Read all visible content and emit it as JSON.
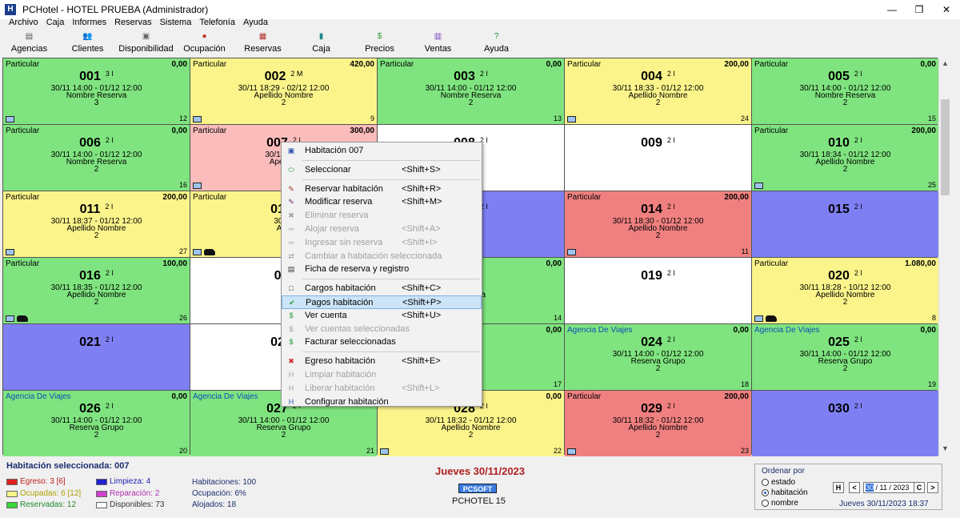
{
  "window": {
    "title": "PCHotel - HOTEL PRUEBA (Administrador)",
    "minimize": "—",
    "restore": "❐",
    "close": "✕"
  },
  "menu": [
    "Archivo",
    "Caja",
    "Informes",
    "Reservas",
    "Sistema",
    "Telefonía",
    "Ayuda"
  ],
  "toolbar": [
    {
      "label": "Agencias",
      "icon": "agencies-icon",
      "glyph": "▤",
      "color": "#555555"
    },
    {
      "label": "Clientes",
      "icon": "clients-icon",
      "glyph": "👥",
      "color": "#333333"
    },
    {
      "label": "Disponibilidad",
      "icon": "availability-icon",
      "glyph": "▣",
      "color": "#666666"
    },
    {
      "label": "Ocupación",
      "icon": "occupancy-icon",
      "glyph": "●",
      "color": "#c0302a"
    },
    {
      "label": "Reservas",
      "icon": "reservations-icon",
      "glyph": "▦",
      "color": "#b0302a"
    },
    {
      "label": "Caja",
      "icon": "cash-register-icon",
      "glyph": "▮",
      "color": "#1f8a8a"
    },
    {
      "label": "Precios",
      "icon": "prices-icon",
      "glyph": "$",
      "color": "#2e9a3a"
    },
    {
      "label": "Ventas",
      "icon": "sales-chart-icon",
      "glyph": "▥",
      "color": "#7a3ec0"
    },
    {
      "label": "Ayuda",
      "icon": "help-icon",
      "glyph": "?",
      "color": "#1e8a2e"
    }
  ],
  "rooms": [
    {
      "num": "001",
      "beds": "3 I",
      "type": "Particular",
      "amount": "0,00",
      "dates": "30/11 14:00 - 01/12 12:00",
      "name": "Nombre Reserva",
      "count": "3",
      "bnum": "12",
      "color": "green",
      "icons": [
        "bed"
      ]
    },
    {
      "num": "002",
      "beds": "2 M",
      "type": "Particular",
      "amount": "420,00",
      "dates": "30/11 18:29 - 02/12 12:00",
      "name": "Apellido Nombre",
      "count": "2",
      "bnum": "9",
      "color": "yellow",
      "icons": [
        "bed"
      ]
    },
    {
      "num": "003",
      "beds": "2 I",
      "type": "Particular",
      "amount": "0,00",
      "dates": "30/11 14:00 - 01/12 12:00",
      "name": "Nombre Reserva",
      "count": "2",
      "bnum": "13",
      "color": "green",
      "icons": []
    },
    {
      "num": "004",
      "beds": "2 I",
      "type": "Particular",
      "amount": "200,00",
      "dates": "30/11 18:33 - 01/12 12:00",
      "name": "Apellido Nombre",
      "count": "2",
      "bnum": "24",
      "color": "yellow",
      "icons": [
        "bed"
      ]
    },
    {
      "num": "005",
      "beds": "2 I",
      "type": "Particular",
      "amount": "0,00",
      "dates": "30/11 14:00 - 01/12 12:00",
      "name": "Nombre Reserva",
      "count": "2",
      "bnum": "15",
      "color": "green",
      "icons": []
    },
    {
      "num": "006",
      "beds": "2 I",
      "type": "Particular",
      "amount": "0,00",
      "dates": "30/11 14:00 - 01/12 12:00",
      "name": "Nombre Reserva",
      "count": "2",
      "bnum": "16",
      "color": "green",
      "icons": []
    },
    {
      "num": "007",
      "beds": "2 I",
      "type": "Particular",
      "amount": "300,00",
      "dates": "30/11 18:3",
      "name": "Apellido",
      "count": "",
      "bnum": "",
      "color": "pink",
      "icons": [
        "bed"
      ]
    },
    {
      "num": "008",
      "beds": "2 I",
      "type": "",
      "amount": "",
      "dates": "",
      "name": "",
      "count": "",
      "bnum": "",
      "color": "white",
      "icons": []
    },
    {
      "num": "009",
      "beds": "2 I",
      "type": "",
      "amount": "",
      "dates": "",
      "name": "",
      "count": "",
      "bnum": "",
      "color": "white",
      "icons": []
    },
    {
      "num": "010",
      "beds": "2 I",
      "type": "Particular",
      "amount": "200,00",
      "dates": "30/11 18:34 - 01/12 12:00",
      "name": "Apellido Nombre",
      "count": "2",
      "bnum": "25",
      "color": "green",
      "icons": [
        "bed"
      ]
    },
    {
      "num": "011",
      "beds": "2 I",
      "type": "Particular",
      "amount": "200,00",
      "dates": "30/11 18:37 - 01/12 12:00",
      "name": "Apellido Nombre",
      "count": "2",
      "bnum": "27",
      "color": "yellow",
      "icons": [
        "bed"
      ]
    },
    {
      "num": "012",
      "beds": "",
      "type": "Particular",
      "amount": "",
      "dates": "30/11",
      "name": "Ape",
      "count": "",
      "bnum": "",
      "color": "yellow",
      "icons": [
        "bed",
        "hand"
      ]
    },
    {
      "num": "013",
      "beds": "2 I",
      "type": "",
      "amount": "",
      "dates": "",
      "name": "",
      "count": "",
      "bnum": "",
      "color": "blue",
      "icons": []
    },
    {
      "num": "014",
      "beds": "2 I",
      "type": "Particular",
      "amount": "200,00",
      "dates": "30/11 18:30 - 01/12 12:00",
      "name": "Apellido Nombre",
      "count": "2",
      "bnum": "11",
      "color": "red",
      "icons": [
        "bed"
      ]
    },
    {
      "num": "015",
      "beds": "2 I",
      "type": "",
      "amount": "",
      "dates": "",
      "name": "",
      "count": "",
      "bnum": "",
      "color": "blue",
      "icons": []
    },
    {
      "num": "016",
      "beds": "2 I",
      "type": "Particular",
      "amount": "100,00",
      "dates": "30/11 18:35 - 01/12 12:00",
      "name": "Apellido Nombre",
      "count": "2",
      "bnum": "26",
      "color": "green",
      "icons": [
        "bed",
        "hand"
      ]
    },
    {
      "num": "01",
      "beds": "",
      "type": "",
      "amount": "",
      "dates": "",
      "name": "",
      "count": "",
      "bnum": "",
      "color": "white",
      "icons": []
    },
    {
      "num": "018",
      "beds": "",
      "type": "",
      "amount": "0,00",
      "dates": "",
      "name": "Reserva",
      "count": "",
      "bnum": "14",
      "color": "green",
      "icons": []
    },
    {
      "num": "019",
      "beds": "2 I",
      "type": "",
      "amount": "",
      "dates": "",
      "name": "",
      "count": "",
      "bnum": "",
      "color": "white",
      "icons": []
    },
    {
      "num": "020",
      "beds": "2 I",
      "type": "Particular",
      "amount": "1.080,00",
      "dates": "30/11 18:28 - 10/12 12:00",
      "name": "Apellido Nombre",
      "count": "2",
      "bnum": "8",
      "color": "yellow",
      "icons": [
        "bed",
        "hand"
      ]
    },
    {
      "num": "021",
      "beds": "2 I",
      "type": "",
      "amount": "",
      "dates": "",
      "name": "",
      "count": "",
      "bnum": "",
      "color": "blue",
      "icons": []
    },
    {
      "num": "022",
      "beds": "",
      "type": "",
      "amount": "",
      "dates": "",
      "name": "",
      "count": "",
      "bnum": "",
      "color": "white",
      "icons": []
    },
    {
      "num": "023",
      "beds": "",
      "type": "",
      "amount": "0,00",
      "dates": "",
      "name": "",
      "count": "",
      "bnum": "17",
      "color": "green",
      "icons": []
    },
    {
      "num": "024",
      "beds": "2 I",
      "type": "Agencia De Viajes",
      "amount": "0,00",
      "dates": "30/11 14:00 - 01/12 12:00",
      "name": "Reserva Grupo",
      "count": "2",
      "bnum": "18",
      "color": "green",
      "icons": []
    },
    {
      "num": "025",
      "beds": "2 I",
      "type": "Agencia De Viajes",
      "amount": "0,00",
      "dates": "30/11 14:00 - 01/12 12:00",
      "name": "Reserva Grupo",
      "count": "2",
      "bnum": "19",
      "color": "green",
      "icons": []
    },
    {
      "num": "026",
      "beds": "2 I",
      "type": "Agencia De Viajes",
      "amount": "0,00",
      "dates": "30/11 14:00 - 01/12 12:00",
      "name": "Reserva Grupo",
      "count": "2",
      "bnum": "20",
      "color": "green",
      "icons": []
    },
    {
      "num": "027",
      "beds": "2 I",
      "type": "Agencia De Viajes",
      "amount": "0,00",
      "dates": "30/11 14:00 - 01/12 12:00",
      "name": "Reserva Grupo",
      "count": "2",
      "bnum": "21",
      "color": "green",
      "icons": []
    },
    {
      "num": "028",
      "beds": "2 I",
      "type": "",
      "amount": "0,00",
      "dates": "30/11 18:32 - 01/12 12:00",
      "name": "Apellido Nombre",
      "count": "2",
      "bnum": "22",
      "color": "yellow",
      "icons": [
        "bed"
      ]
    },
    {
      "num": "029",
      "beds": "2 I",
      "type": "Particular",
      "amount": "200,00",
      "dates": "30/11 18:32 - 01/12 12:00",
      "name": "Apellido Nombre",
      "count": "2",
      "bnum": "23",
      "color": "red",
      "icons": [
        "bed"
      ]
    },
    {
      "num": "030",
      "beds": "2 I",
      "type": "",
      "amount": "",
      "dates": "",
      "name": "",
      "count": "",
      "bnum": "",
      "color": "blue",
      "icons": []
    }
  ],
  "context_menu": {
    "items": [
      {
        "label": "Habitación 007",
        "shortcut": "",
        "icon": "room-icon",
        "glyph": "▣",
        "color": "#2a4fb0",
        "disabled": false,
        "sep_after": true
      },
      {
        "label": "Seleccionar",
        "shortcut": "<Shift+S>",
        "icon": "select-icon",
        "glyph": "⬭",
        "color": "#1f9a2e",
        "disabled": false,
        "sep_after": true
      },
      {
        "label": "Reservar habitación",
        "shortcut": "<Shift+R>",
        "icon": "reserve-icon",
        "glyph": "✎",
        "color": "#b0302a",
        "disabled": false,
        "sep_after": false
      },
      {
        "label": "Modificar reserva",
        "shortcut": "<Shift+M>",
        "icon": "edit-reservation-icon",
        "glyph": "✎",
        "color": "#7a3070",
        "disabled": false,
        "sep_after": false
      },
      {
        "label": "Eliminar reserva",
        "shortcut": "",
        "icon": "delete-reservation-icon",
        "glyph": "✖",
        "color": "#a0a0a0",
        "disabled": true,
        "sep_after": false
      },
      {
        "label": "Alojar reserva",
        "shortcut": "<Shift+A>",
        "icon": "lodge-icon",
        "glyph": "⇨",
        "color": "#a0a0a0",
        "disabled": true,
        "sep_after": false
      },
      {
        "label": "Ingresar sin reserva",
        "shortcut": "<Shift+I>",
        "icon": "checkin-icon",
        "glyph": "⇨",
        "color": "#a0a0a0",
        "disabled": true,
        "sep_after": false
      },
      {
        "label": "Cambiar a habitación seleccionada",
        "shortcut": "",
        "icon": "change-room-icon",
        "glyph": "⇄",
        "color": "#a0a0a0",
        "disabled": true,
        "sep_after": false
      },
      {
        "label": "Ficha de reserva y registro",
        "shortcut": "",
        "icon": "registration-card-icon",
        "glyph": "▤",
        "color": "#333333",
        "disabled": false,
        "sep_after": true
      },
      {
        "label": "Cargos habitación",
        "shortcut": "<Shift+C>",
        "icon": "charges-icon",
        "glyph": "□",
        "color": "#333333",
        "disabled": false,
        "sep_after": false
      },
      {
        "label": "Pagos habitación",
        "shortcut": "<Shift+P>",
        "icon": "payments-checkmark-icon",
        "glyph": "✔",
        "color": "#1f9a2e",
        "disabled": false,
        "sep_after": false,
        "highlight": true
      },
      {
        "label": "Ver cuenta",
        "shortcut": "<Shift+U>",
        "icon": "account-icon",
        "glyph": "$",
        "color": "#1f9a2e",
        "disabled": false,
        "sep_after": false
      },
      {
        "label": "Ver cuentas seleccionadas",
        "shortcut": "",
        "icon": "accounts-icon",
        "glyph": "$",
        "color": "#a0a0a0",
        "disabled": true,
        "sep_after": false
      },
      {
        "label": "Facturar seleccionadas",
        "shortcut": "",
        "icon": "invoice-icon",
        "glyph": "$",
        "color": "#1f9a2e",
        "disabled": false,
        "sep_after": true
      },
      {
        "label": "Egreso habitación",
        "shortcut": "<Shift+E>",
        "icon": "checkout-icon",
        "glyph": "✖",
        "color": "#d02a2a",
        "disabled": false,
        "sep_after": false
      },
      {
        "label": "Limpiar habitación",
        "shortcut": "",
        "icon": "clean-icon",
        "glyph": "H",
        "color": "#a0a0a0",
        "disabled": true,
        "sep_after": false
      },
      {
        "label": "Liberar habitación",
        "shortcut": "<Shift+L>",
        "icon": "release-icon",
        "glyph": "H",
        "color": "#a0a0a0",
        "disabled": true,
        "sep_after": false
      },
      {
        "label": "Configurar habitación",
        "shortcut": "",
        "icon": "configure-room-icon",
        "glyph": "H",
        "color": "#2a4fb0",
        "disabled": false,
        "sep_after": false
      }
    ]
  },
  "status": {
    "selected_room": "Habitación seleccionada: 007",
    "legend": [
      {
        "label": "Egreso: 3 [6]",
        "color": "#e02020",
        "text_color": "#c02020"
      },
      {
        "label": "Ocupadas: 6 [12]",
        "color": "#fbf48a",
        "text_color": "#b0a000"
      },
      {
        "label": "Reservadas: 12",
        "color": "#3ad63a",
        "text_color": "#1f8a2e"
      },
      {
        "label": "Limpieza: 4",
        "color": "#2020d0",
        "text_color": "#2020b0"
      },
      {
        "label": "Reparación: 2",
        "color": "#d040d0",
        "text_color": "#b030b0"
      },
      {
        "label": "Disponibles: 73",
        "color": "#ffffff",
        "text_color": "#333333"
      }
    ],
    "stats": [
      "Habitaciones: 100",
      "Ocupación: 6%",
      "Alojados: 18"
    ],
    "date_big": "Jueves 30/11/2023",
    "pcsoft": "PCSOFT",
    "pchotel_version": "PCHOTEL 15",
    "sort": {
      "title": "Ordenar por",
      "options": [
        {
          "label": "estado",
          "checked": false
        },
        {
          "label": "habitación",
          "checked": true
        },
        {
          "label": "nombre",
          "checked": false
        }
      ]
    },
    "nav": {
      "today_button": "H",
      "prev": "<",
      "day": "30",
      "rest_date": " / 11 / 2023",
      "calendar_button": "C",
      "next": ">"
    },
    "datetime": "Jueves 30/11/2023 18:37"
  }
}
